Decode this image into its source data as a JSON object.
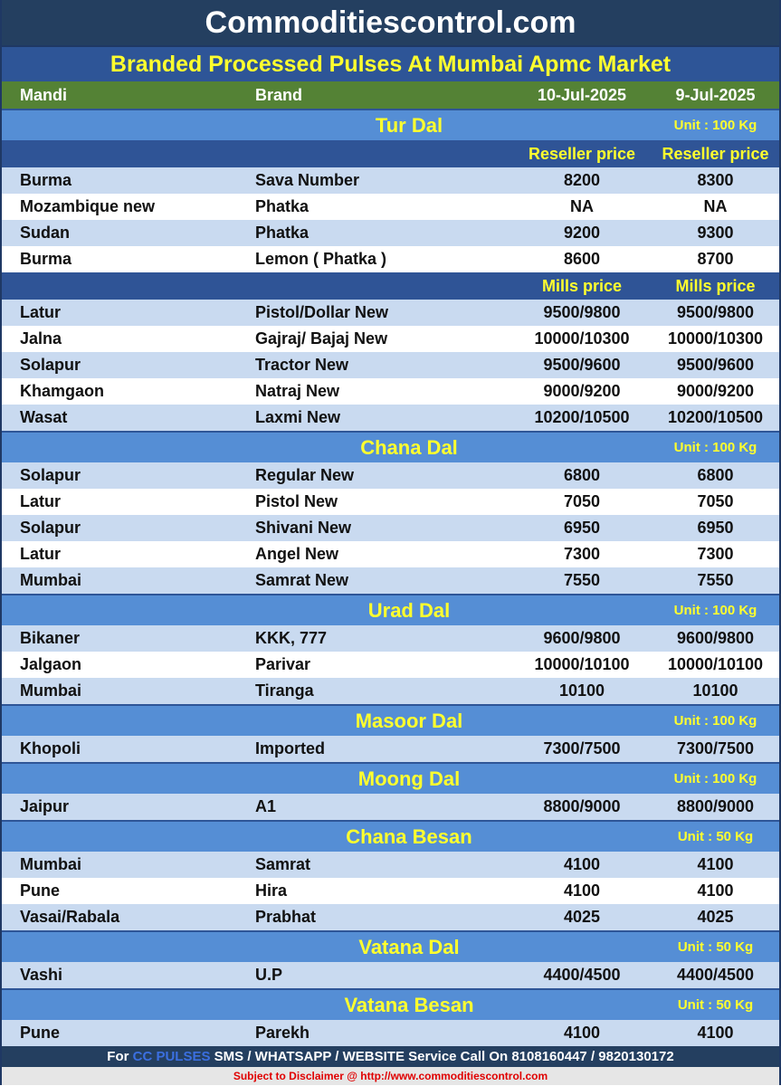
{
  "header": {
    "site": "Commoditiescontrol.com",
    "subtitle": "Branded Processed Pulses At Mumbai Apmc Market",
    "col_mandi": "Mandi",
    "col_brand": "Brand",
    "date1": "10-Jul-2025",
    "date2": "9-Jul-2025"
  },
  "sections": [
    {
      "name": "Tur Dal",
      "unit": "Unit : 100 Kg",
      "groups": [
        {
          "price_type": "Reseller price",
          "rows": [
            [
              "Burma",
              "Sava Number",
              "8200",
              "8300"
            ],
            [
              "Mozambique new",
              "Phatka",
              "NA",
              "NA"
            ],
            [
              "Sudan",
              "Phatka",
              "9200",
              "9300"
            ],
            [
              "Burma",
              "Lemon ( Phatka )",
              "8600",
              "8700"
            ]
          ]
        },
        {
          "price_type": "Mills price",
          "rows": [
            [
              "Latur",
              "Pistol/Dollar New",
              "9500/9800",
              "9500/9800"
            ],
            [
              "Jalna",
              "Gajraj/ Bajaj New",
              "10000/10300",
              "10000/10300"
            ],
            [
              "Solapur",
              "Tractor New",
              "9500/9600",
              "9500/9600"
            ],
            [
              "Khamgaon",
              "Natraj New",
              "9000/9200",
              "9000/9200"
            ],
            [
              "Wasat",
              "Laxmi New",
              "10200/10500",
              "10200/10500"
            ]
          ]
        }
      ]
    },
    {
      "name": "Chana Dal",
      "unit": "Unit : 100 Kg",
      "groups": [
        {
          "rows": [
            [
              "Solapur",
              "Regular New",
              "6800",
              "6800"
            ],
            [
              "Latur",
              "Pistol New",
              "7050",
              "7050"
            ],
            [
              "Solapur",
              "Shivani New",
              "6950",
              "6950"
            ],
            [
              "Latur",
              "Angel New",
              "7300",
              "7300"
            ],
            [
              "Mumbai",
              "Samrat New",
              "7550",
              "7550"
            ]
          ]
        }
      ]
    },
    {
      "name": "Urad Dal",
      "unit": "Unit : 100 Kg",
      "groups": [
        {
          "rows": [
            [
              "Bikaner",
              "KKK, 777",
              "9600/9800",
              "9600/9800"
            ],
            [
              "Jalgaon",
              "Parivar",
              "10000/10100",
              "10000/10100"
            ],
            [
              "Mumbai",
              "Tiranga",
              "10100",
              "10100"
            ]
          ]
        }
      ]
    },
    {
      "name": "Masoor Dal",
      "unit": "Unit : 100 Kg",
      "groups": [
        {
          "rows": [
            [
              "Khopoli",
              "Imported",
              "7300/7500",
              "7300/7500"
            ]
          ]
        }
      ]
    },
    {
      "name": "Moong Dal",
      "unit": "Unit : 100 Kg",
      "groups": [
        {
          "rows": [
            [
              "Jaipur",
              "A1",
              "8800/9000",
              "8800/9000"
            ]
          ]
        }
      ]
    },
    {
      "name": "Chana Besan",
      "unit": "Unit : 50 Kg",
      "groups": [
        {
          "rows": [
            [
              "Mumbai",
              "Samrat",
              "4100",
              "4100"
            ],
            [
              "Pune",
              "Hira",
              "4100",
              "4100"
            ],
            [
              "Vasai/Rabala",
              "Prabhat",
              "4025",
              "4025"
            ]
          ]
        }
      ]
    },
    {
      "name": "Vatana Dal",
      "unit": "Unit : 50 Kg",
      "groups": [
        {
          "rows": [
            [
              "Vashi",
              "U.P",
              "4400/4500",
              "4400/4500"
            ]
          ]
        }
      ]
    },
    {
      "name": "Vatana Besan",
      "unit": "Unit : 50 Kg",
      "groups": [
        {
          "rows": [
            [
              "Pune",
              "Parekh",
              "4100",
              "4100"
            ]
          ]
        }
      ]
    }
  ],
  "footer": {
    "prefix": "For ",
    "brand": "CC PULSES",
    "text": " SMS / WHATSAPP / WEBSITE Service Call On 8108160447 / 9820130172",
    "disclaimer": "Subject to Disclaimer @  http://www.commoditiescontrol.com"
  },
  "colors": {
    "title_bg": "#243f60",
    "subtitle_bg": "#2e5597",
    "header_bg": "#548235",
    "section_bg": "#558ed5",
    "accent_yellow": "#ffff2e"
  }
}
